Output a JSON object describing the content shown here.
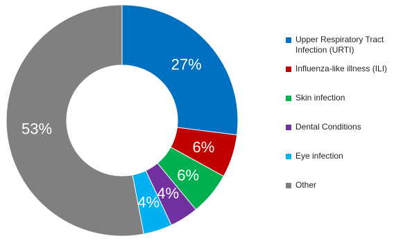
{
  "chart_data": {
    "type": "pie",
    "title": "",
    "categories": [
      "Upper Respiratory Tract Infection (URTI)",
      "Influenza-like illness (ILI)",
      "Skin infection",
      "Dental Conditions",
      "Eye infection",
      "Other"
    ],
    "values": [
      27,
      6,
      6,
      4,
      4,
      53
    ],
    "labels": [
      "27%",
      "6%",
      "6%",
      "4%",
      "4%",
      "53%"
    ],
    "colors": [
      "#0070c0",
      "#c00000",
      "#00b050",
      "#7030a0",
      "#00b0f0",
      "#808080"
    ],
    "donut": true,
    "legend_position": "right"
  }
}
